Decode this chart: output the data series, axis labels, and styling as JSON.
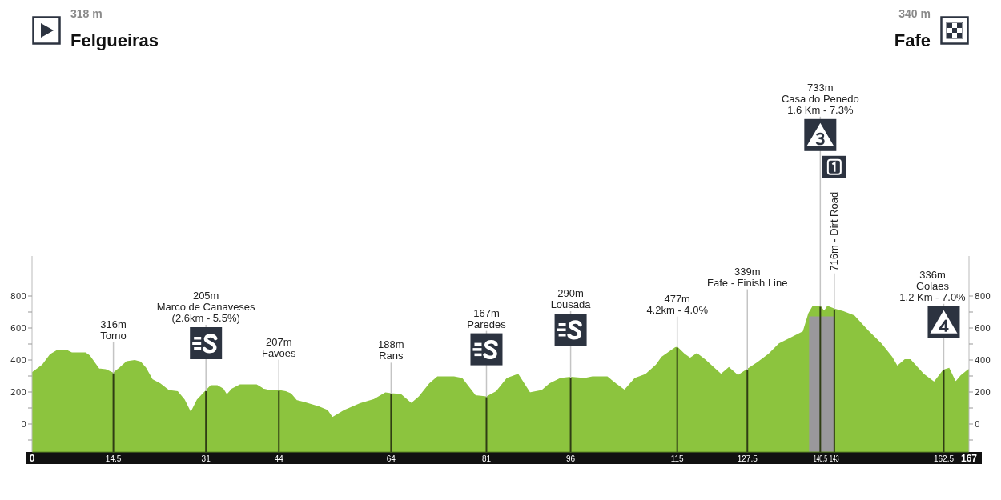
{
  "chart_data": {
    "type": "area",
    "x": [
      0,
      1.9,
      3.3,
      4.5,
      6.2,
      7.1,
      9.5,
      10.2,
      11.9,
      13.1,
      14.5,
      15.7,
      16.9,
      18.3,
      19.3,
      20.2,
      21.4,
      22.8,
      24.3,
      25.9,
      27.1,
      28.3,
      29.5,
      31,
      31.9,
      33,
      34,
      34.7,
      35.7,
      37.1,
      40,
      41.2,
      42.3,
      44,
      45.2,
      46.1,
      47.1,
      48.5,
      51.1,
      52.6,
      53.5,
      55.7,
      58.5,
      60.9,
      63,
      64,
      65.7,
      67.6,
      69,
      70.9,
      72.3,
      75.2,
      76.6,
      79,
      81,
      82.8,
      84.7,
      86.6,
      88.7,
      90.9,
      92.3,
      94.2,
      96,
      98.5,
      99.9,
      102.5,
      104,
      105.6,
      107.5,
      109.4,
      111.3,
      112.3,
      114.7,
      115,
      116.3,
      117.3,
      118.5,
      119.9,
      122.8,
      124.2,
      125.8,
      127.5,
      129.4,
      131.3,
      133.2,
      135.1,
      137.5,
      138.5,
      139.2,
      140.5,
      141.2,
      141.8,
      143,
      144.6,
      146.5,
      148.9,
      151.3,
      153.2,
      154.2,
      155.6,
      156.5,
      158.9,
      160.8,
      162.5,
      163.4,
      164.6,
      165.6,
      167
    ],
    "values": [
      318,
      367,
      433,
      458,
      458,
      442,
      442,
      425,
      342,
      337,
      316,
      350,
      388,
      395,
      385,
      350,
      275,
      250,
      208,
      200,
      150,
      65,
      150,
      205,
      237,
      237,
      217,
      178,
      217,
      242,
      242,
      217,
      208,
      207,
      200,
      187,
      145,
      133,
      105,
      83,
      37,
      83,
      125,
      150,
      192,
      188,
      183,
      125,
      167,
      250,
      292,
      292,
      283,
      175,
      167,
      200,
      283,
      308,
      192,
      208,
      250,
      283,
      290,
      283,
      292,
      292,
      250,
      208,
      283,
      308,
      367,
      417,
      475,
      477,
      433,
      408,
      437,
      400,
      308,
      350,
      300,
      339,
      383,
      433,
      500,
      533,
      575,
      690,
      733,
      733,
      700,
      733,
      716,
      700,
      675,
      583,
      500,
      417,
      358,
      400,
      400,
      308,
      258,
      336,
      345,
      258,
      300,
      340
    ],
    "color": "#8cc43e",
    "xlim": [
      0,
      167
    ],
    "xticks": [
      0,
      14.5,
      31,
      44,
      64,
      81,
      96,
      115,
      127.5,
      140.5,
      143,
      162.5,
      167
    ],
    "ylim": [
      -175,
      1050
    ],
    "yticks": [
      {
        "value": -100,
        "label": null
      },
      0,
      {
        "value": 100,
        "label": null
      },
      200,
      {
        "value": 300,
        "label": null
      },
      400,
      {
        "value": 500,
        "label": null
      },
      600,
      {
        "value": 700,
        "label": null
      },
      800
    ],
    "y2lim": [
      -175,
      1050
    ],
    "y2ticks": [
      {
        "value": -100,
        "label": null
      },
      0,
      {
        "value": 100,
        "label": null
      },
      200,
      {
        "value": 300,
        "label": null
      },
      400,
      {
        "value": 500,
        "label": null
      },
      600,
      {
        "value": 700,
        "label": null
      },
      800
    ],
    "bands": [
      {
        "axis": "x",
        "from": 138.5,
        "to": 143,
        "label": "716m - Dirt Road",
        "color": "#9a989c"
      }
    ],
    "annotations": [
      "318 m\nFelgueiras",
      "340 m\nFafe",
      {
        "text": "316m\nTorno",
        "x": 14.5,
        "y": 316
      },
      {
        "text": "205m\nMarco de Canaveses\n(2.6km - 5.5%)",
        "x": 31,
        "y": 205
      },
      {
        "text": "207m\nFavoes",
        "x": 44,
        "y": 207
      },
      {
        "text": "188m\nRans",
        "x": 64,
        "y": 188
      },
      {
        "text": "167m\nParedes",
        "x": 81,
        "y": 167
      },
      {
        "text": "290m\nLousada",
        "x": 96,
        "y": 290
      },
      {
        "text": "477m\n4.2km - 4.0%",
        "x": 115,
        "y": 477
      },
      {
        "text": "339m\nFafe - Finish Line",
        "x": 127.5,
        "y": 339
      },
      {
        "text": "733m\nCasa do Penedo\n1.6 Km - 7.3%",
        "x": 140.5,
        "y": 733
      },
      {
        "text": "336m\nGolaes\n1.2 Km - 7.0%",
        "x": 162.5,
        "y": 336
      }
    ]
  }
}
